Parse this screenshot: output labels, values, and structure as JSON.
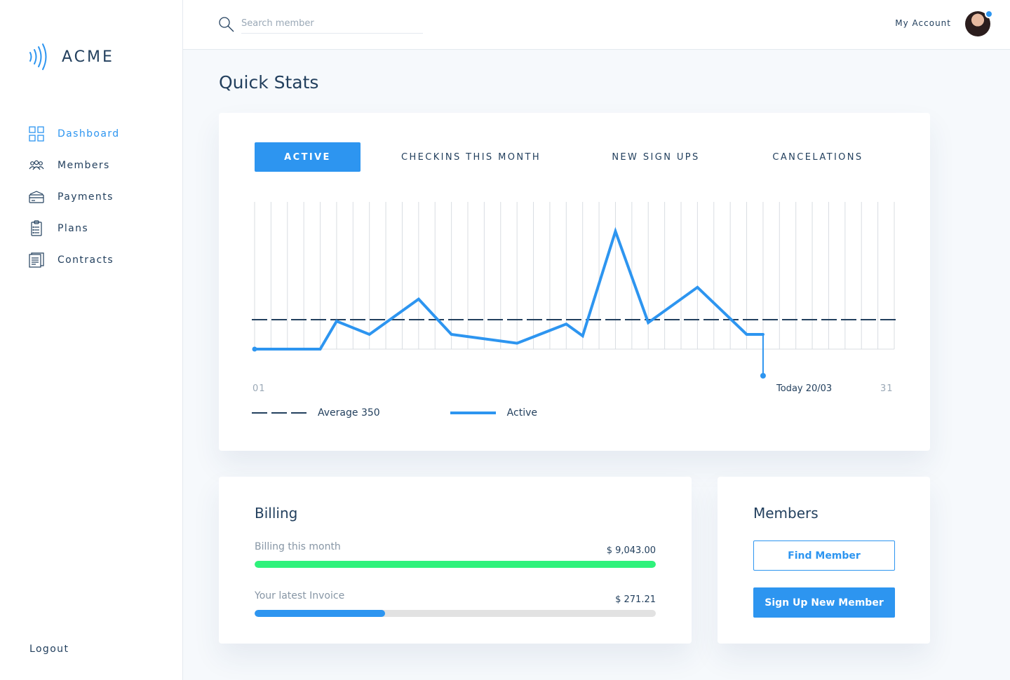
{
  "brand": {
    "name": "ACME"
  },
  "sidebar": {
    "items": [
      {
        "label": "Dashboard",
        "icon": "grid-icon",
        "active": true
      },
      {
        "label": "Members",
        "icon": "users-icon",
        "active": false
      },
      {
        "label": "Payments",
        "icon": "credit-card-icon",
        "active": false
      },
      {
        "label": "Plans",
        "icon": "clipboard-icon",
        "active": false
      },
      {
        "label": "Contracts",
        "icon": "document-icon",
        "active": false
      }
    ],
    "logout": "Logout"
  },
  "header": {
    "search_placeholder": "Search member",
    "account_label": "My Account"
  },
  "main": {
    "title": "Quick Stats",
    "tabs": [
      {
        "label": "ACTIVE",
        "active": true
      },
      {
        "label": "CHECKINS THIS MONTH",
        "active": false
      },
      {
        "label": "NEW SIGN UPS",
        "active": false
      },
      {
        "label": "CANCELATIONS",
        "active": false
      }
    ]
  },
  "chart_data": {
    "type": "line",
    "x_start_label": "01",
    "x_end_label": "31",
    "today_label": "Today 20/03",
    "grid": true,
    "series": [
      {
        "name": "Active",
        "color": "#2d95f0",
        "points": [
          [
            1,
            0.0
          ],
          [
            5,
            0.0
          ],
          [
            6,
            0.19
          ],
          [
            8,
            0.1
          ],
          [
            11,
            0.34
          ],
          [
            13,
            0.1
          ],
          [
            17,
            0.04
          ],
          [
            20,
            0.17
          ],
          [
            21,
            0.09
          ],
          [
            23,
            0.8
          ],
          [
            25,
            0.18
          ],
          [
            28,
            0.42
          ],
          [
            31,
            0.1
          ],
          [
            32,
            0.1
          ]
        ]
      }
    ],
    "average": {
      "label": "Average 350",
      "relative_level": 0.2
    },
    "today_index": 32,
    "legend": [
      {
        "label": "Average 350",
        "style": "dashed",
        "color": "#23405e"
      },
      {
        "label": "Active",
        "style": "solid",
        "color": "#2d95f0"
      }
    ]
  },
  "billing": {
    "title": "Billing",
    "rows": [
      {
        "label": "Billing this month",
        "value": "$ 9,043.00",
        "progress": 1.0,
        "color": "#2ef27b"
      },
      {
        "label": "Your latest Invoice",
        "value": "$ 271.21",
        "progress": 0.325,
        "color": "#2d95f0"
      }
    ]
  },
  "members_panel": {
    "title": "Members",
    "find_label": "Find Member",
    "signup_label": "Sign Up New Member"
  },
  "colors": {
    "accent": "#2d95f0",
    "text": "#23405e",
    "success": "#2ef27b",
    "background": "#f6f9fc"
  }
}
